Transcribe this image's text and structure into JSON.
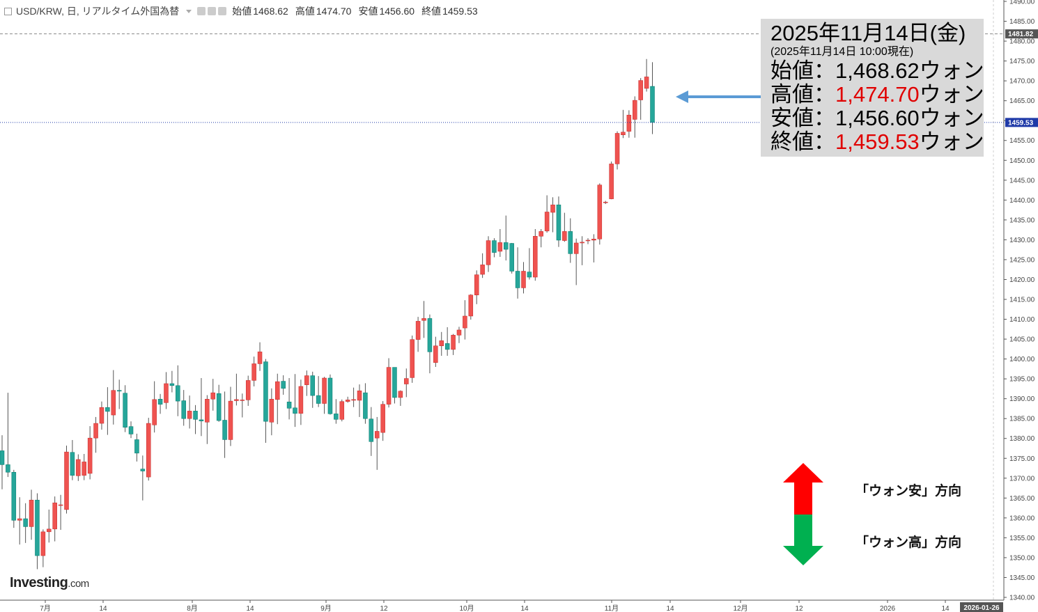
{
  "header": {
    "symbol": "USD/KRW, 日, リアルタイム外国為替",
    "open_label": "始値",
    "open": "1468.62",
    "high_label": "高値",
    "high": "1474.70",
    "low_label": "安値",
    "low": "1456.60",
    "close_label": "終値",
    "close": "1459.53"
  },
  "info_box": {
    "date": "2025年11月14日(金)",
    "as_of": "(2025年11月14日 10:00現在)",
    "open_label": "始値：",
    "open_value": "1,468.62",
    "open_unit": "ウォン",
    "high_label": "高値：",
    "high_value": "1,474.70",
    "high_unit": "ウォン",
    "low_label": "安値：",
    "low_value": "1,456.60",
    "low_unit": "ウォン",
    "close_label": "終値：",
    "close_value": "1,459.53",
    "close_unit": "ウォン"
  },
  "legend_notes": {
    "up": "「ウォン安」方向",
    "down": "「ウォン高」方向"
  },
  "logo": {
    "main": "Investing",
    "suffix": ".com"
  },
  "colors": {
    "up_candle": "#ef5350",
    "down_candle": "#26a69a",
    "wick": "#555555",
    "arrow_blue": "#5b9bd5",
    "arrow_red": "#ff0000",
    "arrow_green": "#00b050",
    "price_line": "#1f3aa8",
    "highlight_red": "#e00000"
  },
  "chart_data": {
    "type": "candlestick",
    "ylim": [
      1340,
      1490
    ],
    "y_ticks": [
      1340,
      1345,
      1350,
      1355,
      1360,
      1365,
      1370,
      1375,
      1380,
      1385,
      1390,
      1395,
      1400,
      1405,
      1410,
      1415,
      1420,
      1425,
      1430,
      1435,
      1440,
      1445,
      1450,
      1455,
      1460,
      1465,
      1470,
      1475,
      1480,
      1485,
      1490
    ],
    "x_labels": [
      "7月",
      "14",
      "8月",
      "14",
      "9月",
      "12",
      "10月",
      "14",
      "11月",
      "14",
      "12月",
      "12",
      "2026",
      "14"
    ],
    "cursor_date": "2026-01-26",
    "current_price": 1459.53,
    "dashed_level": 1481.82,
    "ohlc": [
      [
        1376.9,
        1380.8,
        1367.2,
        1373.4
      ],
      [
        1373.4,
        1391.5,
        1370.3,
        1371.5
      ],
      [
        1371.5,
        1372.1,
        1357.5,
        1359.4
      ],
      [
        1359.4,
        1365.2,
        1353.3,
        1359.8
      ],
      [
        1359.8,
        1363.7,
        1353.7,
        1357.8
      ],
      [
        1357.8,
        1367.1,
        1354.5,
        1364.5
      ],
      [
        1364.5,
        1366.2,
        1347.1,
        1350.5
      ],
      [
        1350.5,
        1357.1,
        1347.6,
        1356.5
      ],
      [
        1356.5,
        1362.1,
        1353.8,
        1357.2
      ],
      [
        1357.2,
        1365.4,
        1354.1,
        1363.8
      ],
      [
        1363.3,
        1365.8,
        1357.0,
        1363.3
      ],
      [
        1362.1,
        1378.2,
        1361.1,
        1376.6
      ],
      [
        1376.5,
        1379.6,
        1369.5,
        1370.7
      ],
      [
        1370.6,
        1376.0,
        1369.3,
        1374.7
      ],
      [
        1370.7,
        1376.1,
        1369.5,
        1374.1
      ],
      [
        1371.2,
        1383.1,
        1369.7,
        1380.1
      ],
      [
        1380.1,
        1385.4,
        1376.4,
        1383.8
      ],
      [
        1383.8,
        1389.3,
        1382.2,
        1387.8
      ],
      [
        1387.8,
        1392.9,
        1380.9,
        1386.8
      ],
      [
        1385.9,
        1397.2,
        1383.5,
        1392.1
      ],
      [
        1392.1,
        1394.8,
        1387.4,
        1391.9
      ],
      [
        1391.4,
        1393.4,
        1381.6,
        1382.8
      ],
      [
        1383.0,
        1384.3,
        1380.1,
        1381.1
      ],
      [
        1379.7,
        1381.2,
        1374.2,
        1376.3
      ],
      [
        1372.3,
        1375.7,
        1364.4,
        1371.8
      ],
      [
        1370.3,
        1385.2,
        1369.4,
        1383.8
      ],
      [
        1383.4,
        1394.4,
        1381.5,
        1389.8
      ],
      [
        1389.9,
        1391.2,
        1386.2,
        1388.6
      ],
      [
        1389.0,
        1396.7,
        1387.4,
        1393.8
      ],
      [
        1393.8,
        1397.0,
        1391.6,
        1393.3
      ],
      [
        1393.3,
        1398.4,
        1385.6,
        1389.4
      ],
      [
        1389.5,
        1392.2,
        1383.2,
        1385.0
      ],
      [
        1385.0,
        1390.8,
        1382.5,
        1386.9
      ],
      [
        1386.9,
        1388.4,
        1381.1,
        1384.8
      ],
      [
        1384.7,
        1395.2,
        1380.6,
        1384.4
      ],
      [
        1384.1,
        1390.9,
        1378.6,
        1389.9
      ],
      [
        1389.9,
        1395.0,
        1387.0,
        1391.5
      ],
      [
        1391.3,
        1393.5,
        1384.2,
        1384.5
      ],
      [
        1384.6,
        1391.8,
        1375.1,
        1379.7
      ],
      [
        1379.7,
        1393.0,
        1378.1,
        1389.4
      ],
      [
        1389.5,
        1396.3,
        1388.3,
        1389.8
      ],
      [
        1389.6,
        1391.3,
        1385.3,
        1389.7
      ],
      [
        1389.7,
        1395.8,
        1388.2,
        1394.6
      ],
      [
        1394.6,
        1400.6,
        1393.1,
        1398.8
      ],
      [
        1398.8,
        1404.2,
        1397.0,
        1401.8
      ],
      [
        1399.3,
        1400.0,
        1378.9,
        1384.3
      ],
      [
        1384.1,
        1392.6,
        1380.8,
        1389.9
      ],
      [
        1389.8,
        1396.3,
        1383.6,
        1394.3
      ],
      [
        1394.4,
        1395.9,
        1391.0,
        1392.6
      ],
      [
        1389.2,
        1395.2,
        1384.8,
        1387.6
      ],
      [
        1387.7,
        1396.2,
        1382.9,
        1386.3
      ],
      [
        1386.3,
        1394.8,
        1383.4,
        1393.1
      ],
      [
        1393.5,
        1397.1,
        1390.7,
        1395.8
      ],
      [
        1395.8,
        1396.8,
        1387.7,
        1390.8
      ],
      [
        1390.8,
        1395.7,
        1387.9,
        1388.8
      ],
      [
        1388.8,
        1395.5,
        1386.2,
        1395.2
      ],
      [
        1395.2,
        1396.1,
        1386.0,
        1386.2
      ],
      [
        1386.2,
        1389.9,
        1383.7,
        1384.8
      ],
      [
        1384.8,
        1389.8,
        1384.3,
        1389.3
      ],
      [
        1389.3,
        1390.5,
        1389.0,
        1389.7
      ],
      [
        1389.6,
        1392.8,
        1387.9,
        1389.8
      ],
      [
        1389.6,
        1393.6,
        1385.4,
        1392.0
      ],
      [
        1391.5,
        1393.9,
        1383.7,
        1385.0
      ],
      [
        1384.9,
        1387.9,
        1375.6,
        1379.2
      ],
      [
        1380.1,
        1385.4,
        1372.1,
        1381.8
      ],
      [
        1381.5,
        1389.4,
        1379.4,
        1388.6
      ],
      [
        1388.6,
        1400.2,
        1387.8,
        1397.9
      ],
      [
        1397.9,
        1397.8,
        1388.8,
        1390.3
      ],
      [
        1390.3,
        1392.1,
        1388.2,
        1391.9
      ],
      [
        1393.7,
        1397.6,
        1390.4,
        1395.1
      ],
      [
        1395.3,
        1405.9,
        1394.0,
        1404.9
      ],
      [
        1404.9,
        1410.6,
        1401.8,
        1409.5
      ],
      [
        1409.7,
        1414.6,
        1405.3,
        1410.2
      ],
      [
        1410.2,
        1411.2,
        1396.4,
        1401.8
      ],
      [
        1399.1,
        1405.6,
        1398.0,
        1403.3
      ],
      [
        1403.3,
        1406.8,
        1400.8,
        1404.6
      ],
      [
        1403.9,
        1408.0,
        1400.8,
        1402.4
      ],
      [
        1402.4,
        1406.3,
        1401.0,
        1406.0
      ],
      [
        1406.0,
        1408.1,
        1404.0,
        1407.3
      ],
      [
        1407.8,
        1414.8,
        1404.9,
        1410.8
      ],
      [
        1410.8,
        1416.3,
        1409.9,
        1416.1
      ],
      [
        1416.1,
        1422.3,
        1413.8,
        1421.2
      ],
      [
        1421.3,
        1426.6,
        1420.4,
        1423.7
      ],
      [
        1423.7,
        1430.9,
        1421.9,
        1429.8
      ],
      [
        1429.8,
        1430.4,
        1425.6,
        1426.8
      ],
      [
        1427.1,
        1432.7,
        1425.7,
        1429.3
      ],
      [
        1429.3,
        1436.1,
        1424.8,
        1427.6
      ],
      [
        1429.1,
        1429.2,
        1421.5,
        1422.1
      ],
      [
        1422.1,
        1428.1,
        1415.2,
        1417.9
      ],
      [
        1417.9,
        1424.4,
        1416.5,
        1422.1
      ],
      [
        1421.9,
        1427.9,
        1420.0,
        1420.6
      ],
      [
        1420.6,
        1432.7,
        1419.7,
        1430.9
      ],
      [
        1430.9,
        1432.7,
        1428.1,
        1432.1
      ],
      [
        1432.2,
        1441.2,
        1431.8,
        1437.0
      ],
      [
        1436.9,
        1440.7,
        1431.9,
        1438.8
      ],
      [
        1438.8,
        1440.9,
        1428.2,
        1429.9
      ],
      [
        1429.8,
        1436.8,
        1429.5,
        1432.1
      ],
      [
        1432.1,
        1435.4,
        1424.2,
        1426.5
      ],
      [
        1426.5,
        1430.3,
        1418.6,
        1429.2
      ],
      [
        1429.2,
        1430.9,
        1423.6,
        1429.4
      ],
      [
        1429.8,
        1430.4,
        1428.9,
        1429.9
      ],
      [
        1429.9,
        1431.4,
        1424.3,
        1430.2
      ],
      [
        1430.2,
        1444.2,
        1428.8,
        1443.8
      ],
      [
        1439.4,
        1439.8,
        1439.0,
        1439.5
      ],
      [
        1440.3,
        1449.7,
        1440.2,
        1449.1
      ],
      [
        1449.1,
        1457.3,
        1447.7,
        1456.8
      ],
      [
        1456.4,
        1462.7,
        1455.6,
        1457.1
      ],
      [
        1457.3,
        1462.6,
        1455.7,
        1461.4
      ],
      [
        1460.3,
        1466.1,
        1455.7,
        1465.1
      ],
      [
        1465.2,
        1470.7,
        1460.2,
        1470.1
      ],
      [
        1468.1,
        1475.5,
        1467.3,
        1471.0
      ],
      [
        1468.62,
        1474.7,
        1456.6,
        1459.53
      ]
    ]
  }
}
